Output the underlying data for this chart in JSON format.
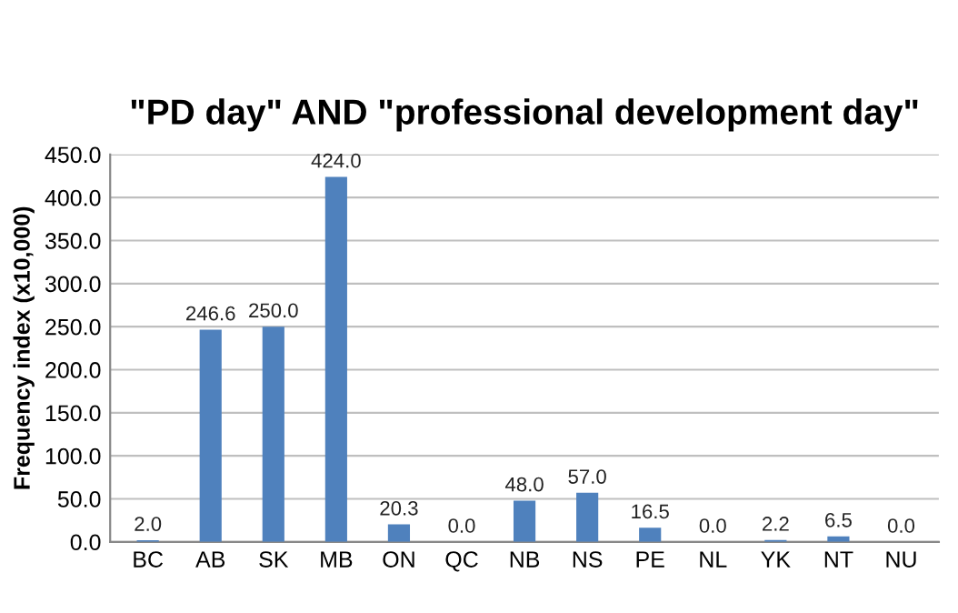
{
  "chart_data": {
    "type": "bar",
    "title": "\"PD day\" AND \"professional development day\"",
    "ylabel": "Frequency index (x10,000)",
    "categories": [
      "BC",
      "AB",
      "SK",
      "MB",
      "ON",
      "QC",
      "NB",
      "NS",
      "PE",
      "NL",
      "YK",
      "NT",
      "NU"
    ],
    "values": [
      2.0,
      246.6,
      250.0,
      424.0,
      20.3,
      0.0,
      48.0,
      57.0,
      16.5,
      0.0,
      2.2,
      6.5,
      0.0
    ],
    "value_labels": [
      "2.0",
      "246.6",
      "250.0",
      "424.0",
      "20.3",
      "0.0",
      "48.0",
      "57.0",
      "16.5",
      "0.0",
      "2.2",
      "6.5",
      "0.0"
    ],
    "color": "#4f81bd",
    "ylim": [
      0,
      450
    ],
    "yticks": [
      {
        "value": 0,
        "label": "0.0"
      },
      {
        "value": 50,
        "label": "50.0"
      },
      {
        "value": 100,
        "label": "100.0"
      },
      {
        "value": 150,
        "label": "150.0"
      },
      {
        "value": 200,
        "label": "200.0"
      },
      {
        "value": 250,
        "label": "250.0"
      },
      {
        "value": 300,
        "label": "300.0"
      },
      {
        "value": 350,
        "label": "350.0"
      },
      {
        "value": 400,
        "label": "400.0"
      },
      {
        "value": 450,
        "label": "450.0"
      }
    ],
    "grid": "y",
    "legend": false
  }
}
